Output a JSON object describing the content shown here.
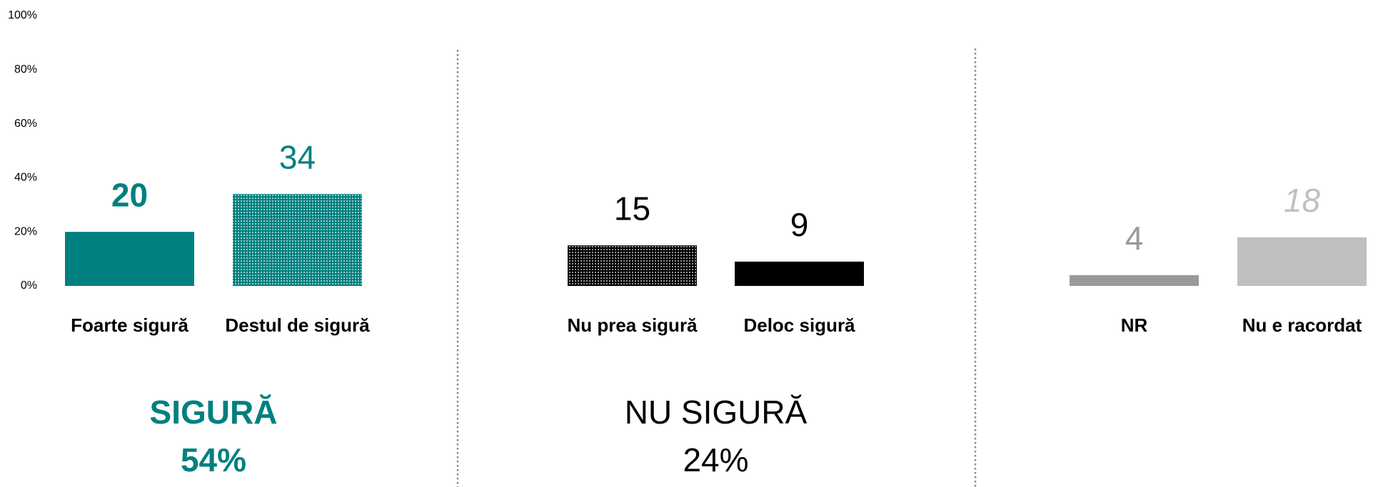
{
  "chart_data": {
    "type": "bar",
    "categories": [
      "Foarte sigură",
      "Destul de sigură",
      "Nu prea sigură",
      "Deloc sigură",
      "NR",
      "Nu e racordat"
    ],
    "values": [
      20,
      34,
      15,
      9,
      4,
      18
    ],
    "colors": [
      "#00807f",
      "#00807f",
      "#000000",
      "#000000",
      "#999999",
      "#c0c0c0"
    ],
    "patterned": [
      false,
      true,
      true,
      false,
      false,
      false
    ],
    "label_styles": [
      "bold",
      "normal",
      "normal",
      "normal",
      "normal",
      "italic"
    ],
    "ylim": [
      0,
      100
    ],
    "yticks": [
      {
        "value": 0,
        "label": "0%"
      },
      {
        "value": 20,
        "label": "20%"
      },
      {
        "value": 40,
        "label": "40%"
      },
      {
        "value": 60,
        "label": "60%"
      },
      {
        "value": 80,
        "label": "80%"
      },
      {
        "value": 100,
        "label": "100%"
      }
    ],
    "groups": [
      {
        "name": "SIGURĂ",
        "value": 54,
        "value_label": "54%",
        "color": "#00807f",
        "bold": true
      },
      {
        "name": "NU SIGURĂ",
        "value": 24,
        "value_label": "24%",
        "color": "#000000",
        "bold": false
      }
    ]
  }
}
